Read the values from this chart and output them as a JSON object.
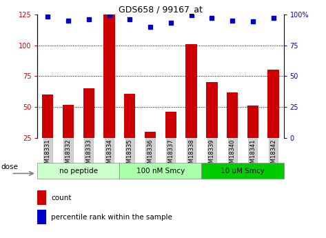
{
  "title": "GDS658 / 99167_at",
  "samples": [
    "GSM18331",
    "GSM18332",
    "GSM18333",
    "GSM18334",
    "GSM18335",
    "GSM18336",
    "GSM18337",
    "GSM18338",
    "GSM18339",
    "GSM18340",
    "GSM18341",
    "GSM18342"
  ],
  "bar_values": [
    60,
    52,
    65,
    126,
    61,
    30,
    46,
    101,
    70,
    62,
    51,
    80
  ],
  "dot_values": [
    98,
    95,
    96,
    99,
    96,
    90,
    93,
    99,
    97,
    95,
    94,
    97
  ],
  "groups": [
    {
      "label": "no peptide",
      "start": 0,
      "end": 4,
      "color": "#ccffcc"
    },
    {
      "label": "100 nM Smcy",
      "start": 4,
      "end": 8,
      "color": "#aaffaa"
    },
    {
      "label": "10 uM Smcy",
      "start": 8,
      "end": 12,
      "color": "#00cc00"
    }
  ],
  "bar_color": "#cc0000",
  "dot_color": "#0000cc",
  "ylim_left": [
    25,
    125
  ],
  "ylim_right": [
    0,
    100
  ],
  "yticks_left": [
    25,
    50,
    75,
    100,
    125
  ],
  "yticks_right": [
    0,
    25,
    50,
    75,
    100
  ],
  "ytick_labels_right": [
    "0",
    "25",
    "50",
    "75",
    "100%"
  ],
  "gridlines": [
    50,
    75,
    100
  ],
  "dose_label": "dose",
  "legend_count": "count",
  "legend_pct": "percentile rank within the sample"
}
